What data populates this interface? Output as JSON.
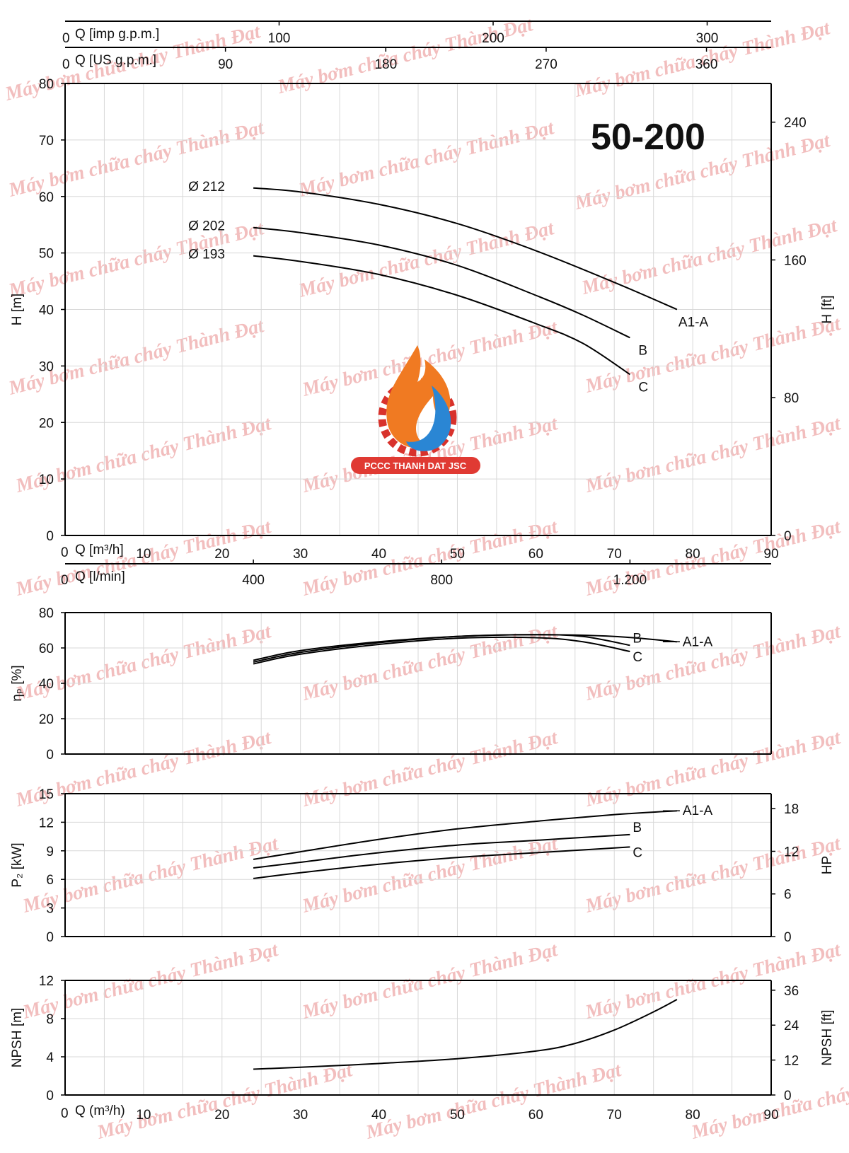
{
  "model": "50-200",
  "logo_text": "PCCC THANH DAT JSC",
  "watermark": "Máy bơm chữa cháy Thành Đạt",
  "top_axes": {
    "imp": {
      "label": "Q [imp g.p.m.]",
      "zero": "0",
      "ticks": [
        "100",
        "200",
        "300"
      ]
    },
    "us": {
      "label": "Q [US g.p.m.]",
      "zero": "0",
      "ticks": [
        "90",
        "180",
        "270",
        "360"
      ]
    }
  },
  "q_axis_bottom": {
    "label": "Q [m³/h]",
    "zero": "0",
    "ticks": [
      "10",
      "20",
      "30",
      "40",
      "50",
      "60",
      "70",
      "80",
      "90"
    ]
  },
  "lmin_axis": {
    "label": "Q [l/min]",
    "zero": "0",
    "ticks": [
      "400",
      "800",
      "1.200"
    ]
  },
  "npsh_q_axis": {
    "label": "Q (m³/h)",
    "zero": "0",
    "ticks": [
      "10",
      "20",
      "30",
      "40",
      "50",
      "60",
      "70",
      "80",
      "90"
    ]
  },
  "chart_data": [
    {
      "type": "line",
      "name": "head",
      "ylabel": "H [m]",
      "ylabel_right": "H [ft]",
      "xlim": [
        0,
        90
      ],
      "ylim": [
        0,
        80
      ],
      "y_ticks": [
        "0",
        "10",
        "20",
        "30",
        "40",
        "50",
        "60",
        "70",
        "80"
      ],
      "y_ticks_right": [
        "0",
        "80",
        "160",
        "240"
      ],
      "series": [
        {
          "name": "Ø 212",
          "end_label": "A1-A",
          "x": [
            24,
            30,
            40,
            50,
            60,
            70,
            78
          ],
          "y": [
            61.5,
            60.8,
            58.6,
            55.2,
            50.4,
            44.8,
            40
          ]
        },
        {
          "name": "Ø 202",
          "end_label": "B",
          "x": [
            24,
            30,
            40,
            50,
            60,
            66,
            72
          ],
          "y": [
            54.5,
            53.6,
            51.4,
            47.8,
            42.5,
            39,
            35
          ]
        },
        {
          "name": "Ø 193",
          "end_label": "C",
          "x": [
            24,
            30,
            40,
            50,
            60,
            66,
            72
          ],
          "y": [
            49.5,
            48.5,
            46.2,
            42.5,
            37.5,
            34,
            28.5
          ]
        }
      ]
    },
    {
      "type": "line",
      "name": "efficiency",
      "ylabel": "ηₚ [%]",
      "xlim": [
        0,
        90
      ],
      "ylim": [
        0,
        80
      ],
      "y_ticks": [
        "0",
        "20",
        "40",
        "60",
        "80"
      ],
      "series": [
        {
          "name": "A1-A",
          "x": [
            24,
            30,
            40,
            50,
            60,
            70,
            78
          ],
          "y": [
            53,
            58.5,
            63.5,
            66.5,
            67.5,
            66.5,
            63.5
          ]
        },
        {
          "name": "B",
          "x": [
            24,
            30,
            40,
            50,
            60,
            66,
            72
          ],
          "y": [
            52,
            57.5,
            63,
            66.5,
            67.5,
            66.5,
            61.5
          ]
        },
        {
          "name": "C",
          "x": [
            24,
            30,
            40,
            50,
            60,
            66,
            72
          ],
          "y": [
            51,
            56.5,
            62,
            65.5,
            65.8,
            63.5,
            58
          ]
        }
      ]
    },
    {
      "type": "line",
      "name": "power",
      "ylabel": "P₂ [kW]",
      "ylabel_right": "HP",
      "xlim": [
        0,
        90
      ],
      "ylim": [
        0,
        15
      ],
      "y_ticks": [
        "0",
        "3",
        "6",
        "9",
        "12",
        "15"
      ],
      "y_ticks_right": [
        "0",
        "6",
        "12",
        "18"
      ],
      "series": [
        {
          "name": "A1-A",
          "x": [
            24,
            30,
            40,
            50,
            60,
            70,
            78
          ],
          "y": [
            8.1,
            8.9,
            10.2,
            11.3,
            12.1,
            12.8,
            13.2
          ]
        },
        {
          "name": "B",
          "x": [
            24,
            30,
            40,
            50,
            60,
            66,
            72
          ],
          "y": [
            7.2,
            7.8,
            8.8,
            9.6,
            10.1,
            10.4,
            10.7
          ]
        },
        {
          "name": "C",
          "x": [
            24,
            30,
            40,
            50,
            60,
            66,
            72
          ],
          "y": [
            6.1,
            6.7,
            7.6,
            8.3,
            8.8,
            9.1,
            9.4
          ]
        }
      ]
    },
    {
      "type": "line",
      "name": "npsh",
      "ylabel": "NPSH [m]",
      "ylabel_right": "NPSH [ft]",
      "xlim": [
        0,
        90
      ],
      "ylim": [
        0,
        12
      ],
      "y_ticks": [
        "0",
        "4",
        "8",
        "12"
      ],
      "y_ticks_right": [
        "0",
        "12",
        "24",
        "36"
      ],
      "series": [
        {
          "name": "",
          "x": [
            24,
            30,
            40,
            50,
            60,
            65,
            70,
            75,
            78
          ],
          "y": [
            2.7,
            2.9,
            3.3,
            3.8,
            4.6,
            5.4,
            6.8,
            8.7,
            10
          ]
        }
      ]
    }
  ]
}
